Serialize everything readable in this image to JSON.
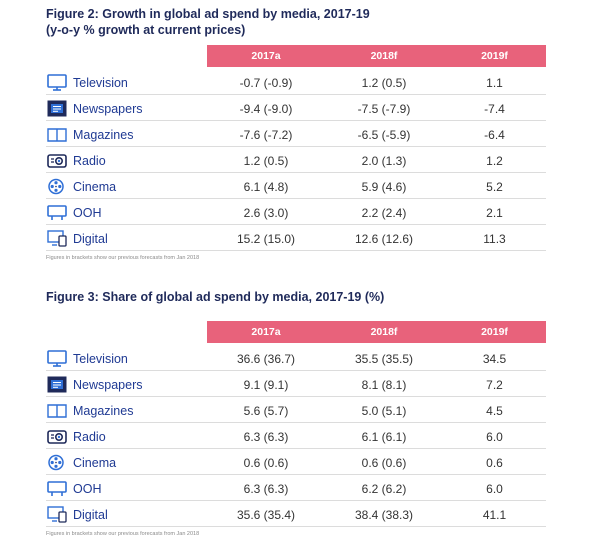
{
  "figure2": {
    "title_line1": "Figure 2: Growth in global ad spend by media, 2017-19",
    "title_line2": "(y-o-y % growth at current prices)",
    "columns": [
      "2017a",
      "2018f",
      "2019f"
    ],
    "rows": [
      {
        "label": "Television",
        "icon": "television-icon",
        "v": [
          "-0.7 (-0.9)",
          "1.2 (0.5)",
          "1.1"
        ]
      },
      {
        "label": "Newspapers",
        "icon": "newspaper-icon",
        "v": [
          "-9.4 (-9.0)",
          "-7.5 (-7.9)",
          "-7.4"
        ]
      },
      {
        "label": "Magazines",
        "icon": "magazine-icon",
        "v": [
          "-7.6 (-7.2)",
          "-6.5 (-5.9)",
          "-6.4"
        ]
      },
      {
        "label": "Radio",
        "icon": "radio-icon",
        "v": [
          "1.2 (0.5)",
          "2.0 (1.3)",
          "1.2"
        ]
      },
      {
        "label": "Cinema",
        "icon": "film-reel-icon",
        "v": [
          "6.1 (4.8)",
          "5.9 (4.6)",
          "5.2"
        ]
      },
      {
        "label": "OOH",
        "icon": "billboard-icon",
        "v": [
          "2.6 (3.0)",
          "2.2 (2.4)",
          "2.1"
        ]
      },
      {
        "label": "Digital",
        "icon": "digital-devices-icon",
        "v": [
          "15.2 (15.0)",
          "12.6 (12.6)",
          "11.3"
        ]
      }
    ],
    "note": "Figures in brackets show our previous forecasts from Jan 2018"
  },
  "figure3": {
    "title_line1": "Figure 3: Share of global ad spend by media, 2017-19 (%)",
    "columns": [
      "2017a",
      "2018f",
      "2019f"
    ],
    "rows": [
      {
        "label": "Television",
        "icon": "television-icon",
        "v": [
          "36.6 (36.7)",
          "35.5 (35.5)",
          "34.5"
        ]
      },
      {
        "label": "Newspapers",
        "icon": "newspaper-icon",
        "v": [
          "9.1 (9.1)",
          "8.1 (8.1)",
          "7.2"
        ]
      },
      {
        "label": "Magazines",
        "icon": "magazine-icon",
        "v": [
          "5.6 (5.7)",
          "5.0 (5.1)",
          "4.5"
        ]
      },
      {
        "label": "Radio",
        "icon": "radio-icon",
        "v": [
          "6.3 (6.3)",
          "6.1 (6.1)",
          "6.0"
        ]
      },
      {
        "label": "Cinema",
        "icon": "film-reel-icon",
        "v": [
          "0.6 (0.6)",
          "0.6 (0.6)",
          "0.6"
        ]
      },
      {
        "label": "OOH",
        "icon": "billboard-icon",
        "v": [
          "6.3 (6.3)",
          "6.2 (6.2)",
          "6.0"
        ]
      },
      {
        "label": "Digital",
        "icon": "digital-devices-icon",
        "v": [
          "35.6 (35.4)",
          "38.4 (38.3)",
          "41.1"
        ]
      }
    ],
    "note": "Figures in brackets show our previous forecasts from Jan 2018"
  },
  "colors": {
    "header": "#e8627b",
    "title": "#1f2a5a",
    "label": "#1f3a93",
    "icon": "#2f6fd6"
  }
}
